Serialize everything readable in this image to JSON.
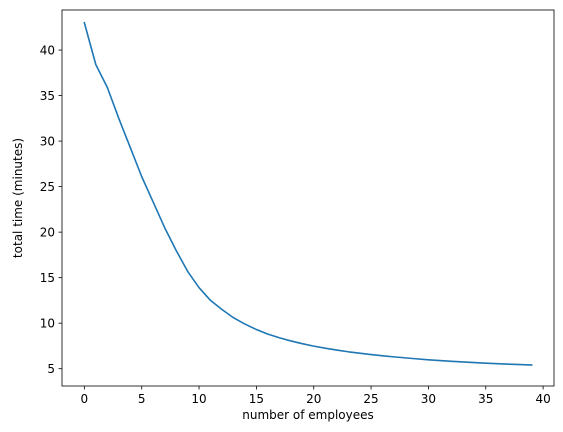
{
  "chart_data": {
    "type": "line",
    "title": "",
    "xlabel": "number of employees",
    "ylabel": "total time (minutes)",
    "xlim": [
      -1.95,
      40.95
    ],
    "ylim": [
      3.1,
      44.4
    ],
    "grid": false,
    "xticks": [
      0,
      5,
      10,
      15,
      20,
      25,
      30,
      35,
      40
    ],
    "yticks": [
      5,
      10,
      15,
      20,
      25,
      30,
      35,
      40
    ],
    "line_color": "#1f77b4",
    "series": [
      {
        "x": [
          0,
          1,
          2,
          3,
          4,
          5,
          6,
          7,
          8,
          9,
          10,
          11,
          12,
          13,
          14,
          15,
          16,
          17,
          18,
          19,
          20,
          21,
          22,
          23,
          24,
          25,
          26,
          27,
          28,
          29,
          30,
          31,
          32,
          33,
          34,
          35,
          36,
          37,
          38,
          39
        ],
        "values": [
          43.0,
          38.4,
          35.9,
          32.5,
          29.3,
          26.1,
          23.3,
          20.5,
          18.0,
          15.7,
          13.9,
          12.5,
          11.5,
          10.6,
          9.9,
          9.3,
          8.8,
          8.4,
          8.05,
          7.75,
          7.48,
          7.25,
          7.05,
          6.86,
          6.7,
          6.55,
          6.42,
          6.3,
          6.19,
          6.08,
          5.98,
          5.89,
          5.81,
          5.74,
          5.67,
          5.61,
          5.55,
          5.5,
          5.45,
          5.4
        ]
      }
    ]
  }
}
